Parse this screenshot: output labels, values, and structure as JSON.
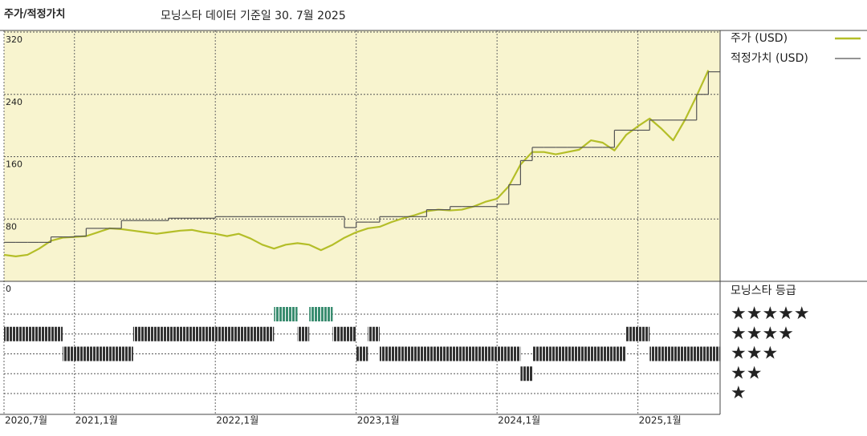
{
  "chart_data": [
    {
      "type": "line",
      "title": "주가/적정가치",
      "subtitle": "모닝스타 데이터 기준일 30. 7월 2025",
      "x": [
        "2020-07",
        "2020-08",
        "2020-09",
        "2020-10",
        "2020-11",
        "2020-12",
        "2021-01",
        "2021-02",
        "2021-03",
        "2021-04",
        "2021-05",
        "2021-06",
        "2021-07",
        "2021-08",
        "2021-09",
        "2021-10",
        "2021-11",
        "2021-12",
        "2022-01",
        "2022-02",
        "2022-03",
        "2022-04",
        "2022-05",
        "2022-06",
        "2022-07",
        "2022-08",
        "2022-09",
        "2022-10",
        "2022-11",
        "2022-12",
        "2023-01",
        "2023-02",
        "2023-03",
        "2023-04",
        "2023-05",
        "2023-06",
        "2023-07",
        "2023-08",
        "2023-09",
        "2023-10",
        "2023-11",
        "2023-12",
        "2024-01",
        "2024-02",
        "2024-03",
        "2024-04",
        "2024-05",
        "2024-06",
        "2024-07",
        "2024-08",
        "2024-09",
        "2024-10",
        "2024-11",
        "2024-12",
        "2025-01",
        "2025-02",
        "2025-03",
        "2025-04",
        "2025-05",
        "2025-06",
        "2025-07"
      ],
      "xlim": [
        "2020-07",
        "2025-08"
      ],
      "xticks": [
        {
          "value": "2020-07",
          "label": "2020,7월"
        },
        {
          "value": "2021-01",
          "label": "2021,1월"
        },
        {
          "value": "2022-01",
          "label": "2022,1월"
        },
        {
          "value": "2023-01",
          "label": "2023,1월"
        },
        {
          "value": "2024-01",
          "label": "2024,1월"
        },
        {
          "value": "2025-01",
          "label": "2025,1월"
        }
      ],
      "ylim": [
        0,
        320
      ],
      "yticks": [
        0,
        80,
        160,
        240,
        320
      ],
      "grid": true,
      "legend": "right",
      "series": [
        {
          "name": "주가 (USD)",
          "color": "#b4be28",
          "values": [
            34,
            32,
            34,
            42,
            52,
            56,
            57,
            58,
            63,
            68,
            67,
            65,
            63,
            61,
            63,
            65,
            66,
            63,
            61,
            58,
            61,
            55,
            47,
            42,
            47,
            49,
            47,
            40,
            47,
            56,
            63,
            68,
            70,
            76,
            81,
            85,
            90,
            92,
            91,
            92,
            96,
            102,
            106,
            122,
            150,
            166,
            166,
            163,
            166,
            169,
            181,
            178,
            168,
            188,
            199,
            209,
            196,
            181,
            207,
            238,
            271
          ]
        },
        {
          "name": "적정가치 (USD)",
          "color": "#555555",
          "step": true,
          "values": [
            50,
            50,
            50,
            50,
            57,
            57,
            58,
            68,
            68,
            68,
            78,
            78,
            78,
            78,
            81,
            81,
            81,
            81,
            83,
            83,
            83,
            83,
            83,
            83,
            83,
            83,
            83,
            83,
            83,
            69,
            76,
            76,
            83,
            83,
            83,
            83,
            92,
            92,
            96,
            96,
            96,
            96,
            99,
            124,
            155,
            172,
            172,
            172,
            172,
            172,
            172,
            172,
            194,
            194,
            194,
            207,
            207,
            207,
            207,
            240,
            269
          ]
        }
      ]
    },
    {
      "type": "rating",
      "title": "모닝스타 등급",
      "x": [
        "2020-07",
        "2020-12",
        "2021-06",
        "2022-06",
        "2022-08",
        "2022-09",
        "2022-11",
        "2023-01",
        "2023-02",
        "2023-03",
        "2024-03",
        "2024-04",
        "2024-12",
        "2025-02"
      ],
      "values": [
        4,
        3,
        4,
        5,
        4,
        5,
        4,
        3,
        4,
        3,
        2,
        3,
        4,
        3
      ],
      "xlim": [
        "2020-07",
        "2025-08"
      ],
      "row_labels": [
        "★★★★★",
        "★★★★",
        "★★★",
        "★★",
        "★"
      ],
      "color": "#333333",
      "top_color": "#3a8d70"
    }
  ]
}
